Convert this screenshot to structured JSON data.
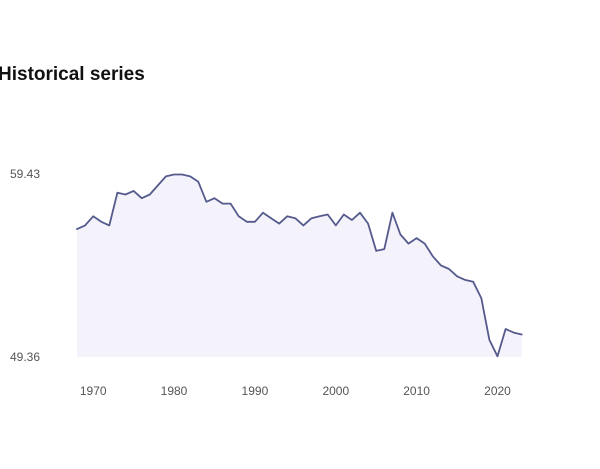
{
  "chart_data": {
    "type": "area",
    "title": "Historical series",
    "xlabel": "",
    "ylabel": "",
    "xlim": [
      1968,
      2026
    ],
    "ylim": [
      49.36,
      59.43
    ],
    "y_ticks": [
      {
        "value": 59.43,
        "label": "59.43"
      },
      {
        "value": 49.36,
        "label": "49.36"
      }
    ],
    "x_ticks": [
      {
        "value": 1970,
        "label": "1970"
      },
      {
        "value": 1980,
        "label": "1980"
      },
      {
        "value": 1990,
        "label": "1990"
      },
      {
        "value": 2000,
        "label": "2000"
      },
      {
        "value": 2010,
        "label": "2010"
      },
      {
        "value": 2020,
        "label": "2020"
      }
    ],
    "grid": false,
    "legend": "none",
    "colors": {
      "line": "#555a8c",
      "fill": "#ecebf8"
    },
    "series": [
      {
        "x": [
          1968,
          1969,
          1970,
          1971,
          1972,
          1973,
          1974,
          1975,
          1976,
          1977,
          1978,
          1979,
          1980,
          1981,
          1982,
          1983,
          1984,
          1985,
          1986,
          1987,
          1988,
          1989,
          1990,
          1991,
          1992,
          1993,
          1994,
          1995,
          1996,
          1997,
          1998,
          1999,
          2000,
          2001,
          2002,
          2003,
          2004,
          2005,
          2006,
          2007,
          2008,
          2009,
          2010,
          2011,
          2012,
          2013,
          2014,
          2015,
          2016,
          2017,
          2018,
          2019,
          2020,
          2021,
          2022,
          2023
        ],
        "values": [
          56.4,
          56.6,
          57.1,
          56.8,
          56.6,
          58.4,
          58.3,
          58.5,
          58.1,
          58.3,
          58.8,
          59.3,
          59.4,
          59.4,
          59.3,
          59.0,
          57.9,
          58.1,
          57.8,
          57.8,
          57.1,
          56.8,
          56.8,
          57.3,
          57.0,
          56.7,
          57.1,
          57.0,
          56.6,
          57.0,
          57.1,
          57.2,
          56.6,
          57.2,
          56.9,
          57.3,
          56.7,
          55.2,
          55.3,
          57.3,
          56.1,
          55.6,
          55.9,
          55.6,
          54.9,
          54.4,
          54.2,
          53.8,
          53.6,
          53.5,
          52.6,
          50.3,
          49.4,
          50.9,
          50.7,
          50.6
        ]
      }
    ]
  }
}
